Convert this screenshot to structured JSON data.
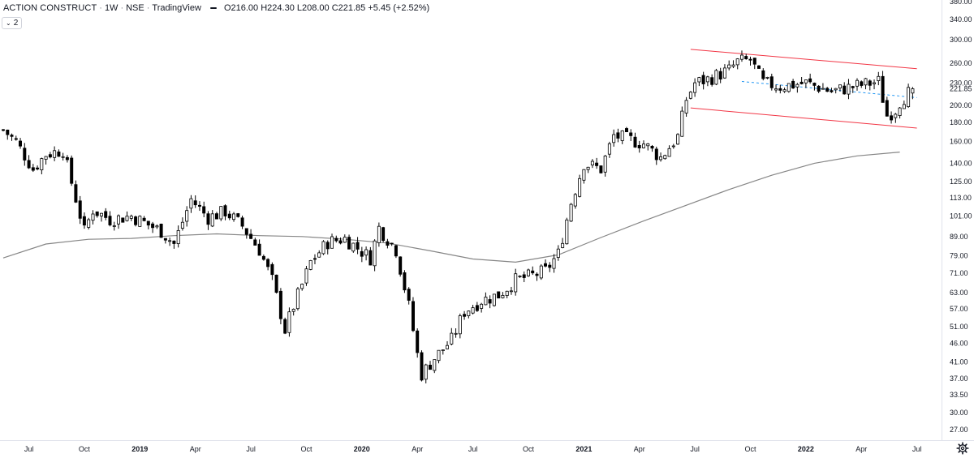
{
  "header": {
    "symbol": "ACTION CONSTRUCT",
    "interval": "1W",
    "exchange": "NSE",
    "source": "TradingView",
    "open": "O216.00",
    "high": "H224.30",
    "low": "L208.00",
    "close": "C221.85",
    "change": "+5.45 (+2.52%)"
  },
  "indicator_badge": {
    "count": "2",
    "chevron_icon": "chevron-down-icon"
  },
  "colors": {
    "up_fill": "#ffffff",
    "down_fill": "#000000",
    "candle_outline": "#000000",
    "ma_line": "#868686",
    "channel": "#f23645",
    "midline": "#2196f3",
    "axis_border": "#e0e3eb"
  },
  "chart_data": {
    "type": "candlestick",
    "title": "ACTION CONSTRUCT · 1W · NSE · TradingView",
    "y_scale": "log",
    "ylim": [
      27,
      380
    ],
    "y_ticks": [
      "380.00",
      "340.00",
      "300.00",
      "260.00",
      "230.00",
      "221.85",
      "200.00",
      "180.00",
      "160.00",
      "140.00",
      "125.00",
      "113.00",
      "101.00",
      "89.00",
      "79.00",
      "71.00",
      "63.00",
      "57.00",
      "51.00",
      "46.00",
      "41.00",
      "37.00",
      "33.50",
      "30.00",
      "27.00"
    ],
    "last_price_label": "221.85",
    "x_labels": [
      "Jul",
      "Oct",
      "2019",
      "Apr",
      "Jul",
      "Oct",
      "2020",
      "Apr",
      "Jul",
      "Oct",
      "2021",
      "Apr",
      "Jul",
      "Oct",
      "2022",
      "Apr",
      "Jul"
    ],
    "x_label_weeks": [
      6,
      19,
      32,
      45,
      58,
      71,
      84,
      97,
      110,
      123,
      136,
      149,
      162,
      175,
      188,
      201,
      214
    ],
    "moving_average": {
      "name": "MA",
      "weeks": [
        0,
        10,
        20,
        30,
        40,
        50,
        60,
        70,
        80,
        90,
        100,
        110,
        120,
        130,
        140,
        150,
        160,
        170,
        180,
        190,
        200,
        210
      ],
      "values": [
        78,
        85,
        87.5,
        88,
        89.5,
        90.5,
        89.5,
        89,
        87.5,
        85.5,
        81.5,
        77.5,
        76,
        79.5,
        88.5,
        98,
        108,
        119,
        130,
        140,
        146.5,
        150
      ]
    },
    "channel": {
      "upper": {
        "from": [
          161,
          283
        ],
        "to": [
          214,
          251
        ]
      },
      "lower": {
        "from": [
          161,
          197
        ],
        "to": [
          214,
          174
        ]
      },
      "midline": {
        "from": [
          173,
          232
        ],
        "to": [
          214,
          210
        ]
      }
    },
    "waypoints": {
      "weeks": [
        0,
        3,
        7,
        10,
        14,
        19,
        21,
        25,
        30,
        37,
        40,
        44,
        48,
        52,
        56,
        60,
        63,
        66,
        68,
        70,
        72,
        76,
        80,
        86,
        88,
        92,
        95,
        97,
        98,
        101,
        105,
        108,
        112,
        116,
        120,
        124,
        127,
        130,
        133,
        136,
        140,
        143,
        146,
        150,
        154,
        158,
        160,
        162,
        165,
        170,
        172,
        175,
        178,
        182,
        188,
        194,
        200,
        205,
        207,
        209,
        210,
        213
      ],
      "values": [
        172,
        160,
        135,
        148,
        152,
        92,
        105,
        99,
        101,
        92,
        85,
        112,
        100,
        104,
        95,
        82,
        68,
        50,
        58,
        66,
        76,
        86,
        88,
        78,
        94,
        82,
        58,
        43,
        38,
        42,
        47,
        56,
        60,
        62,
        68,
        70,
        72,
        80,
        110,
        140,
        135,
        166,
        163,
        158,
        145,
        165,
        208,
        230,
        235,
        249,
        262,
        265,
        230,
        225,
        230,
        218,
        226,
        232,
        188,
        195,
        205,
        222
      ]
    },
    "last_candle": {
      "open": 216.0,
      "high": 224.3,
      "low": 208.0,
      "close": 221.85
    }
  }
}
